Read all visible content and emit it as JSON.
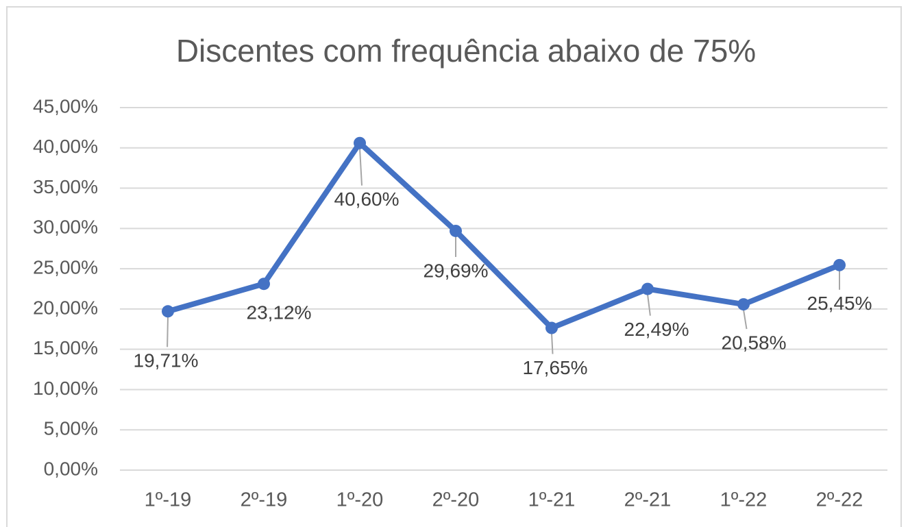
{
  "chart_data": {
    "type": "line",
    "title": "Discentes com frequência abaixo de 75%",
    "categories": [
      "1º-19",
      "2º-19",
      "1º-20",
      "2º-20",
      "1º-21",
      "2º-21",
      "1º-22",
      "2º-22"
    ],
    "series": [
      {
        "name": "Discentes com frequência abaixo de 75%",
        "color": "#4472c4",
        "values": [
          19.71,
          23.12,
          40.6,
          29.69,
          17.65,
          22.49,
          20.58,
          25.45
        ],
        "value_labels": [
          "19,71%",
          "23,12%",
          "40,60%",
          "29,69%",
          "17,65%",
          "22,49%",
          "20,58%",
          "25,45%"
        ]
      }
    ],
    "ylim": [
      0,
      45
    ],
    "yticks": [
      {
        "value": 0,
        "label": "0,00%"
      },
      {
        "value": 5,
        "label": "5,00%"
      },
      {
        "value": 10,
        "label": "10,00%"
      },
      {
        "value": 15,
        "label": "15,00%"
      },
      {
        "value": 20,
        "label": "20,00%"
      },
      {
        "value": 25,
        "label": "25,00%"
      },
      {
        "value": 30,
        "label": "30,00%"
      },
      {
        "value": 35,
        "label": "35,00%"
      },
      {
        "value": 40,
        "label": "40,00%"
      },
      {
        "value": 45,
        "label": "45,00%"
      }
    ],
    "grid": true
  }
}
